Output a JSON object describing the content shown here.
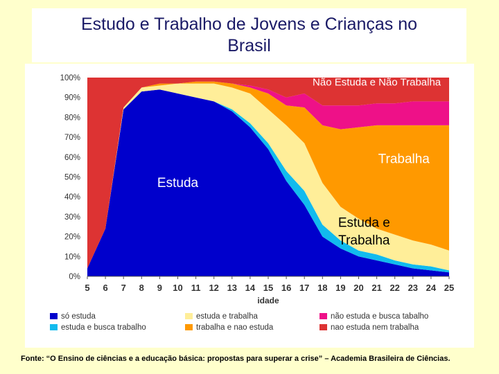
{
  "header": {
    "title_line1": "Estudo e Trabalho de Jovens e Crianças no",
    "title_line2": "Brasil"
  },
  "footer": {
    "source": "Fonte:  “O Ensino de ciências e a educação básica: propostas para superar a crise” – Academia Brasileira de Ciências."
  },
  "colors": {
    "so_estuda": "#0000cc",
    "estuda_busca_trabalho": "#11bbee",
    "estuda_trabalha": "#ffee99",
    "trabalha_nao_estuda": "#ff9900",
    "nao_estuda_busca_trabalho": "#ee1188",
    "nao_estuda_nem_trabalha": "#dd3333"
  },
  "chart_data": {
    "type": "area",
    "stacked": true,
    "xlabel": "idade",
    "ylabel": "",
    "x": [
      5,
      6,
      7,
      8,
      9,
      10,
      11,
      12,
      13,
      14,
      15,
      16,
      17,
      18,
      19,
      20,
      21,
      22,
      23,
      24,
      25
    ],
    "ylim": [
      0,
      100
    ],
    "yticks": [
      "0%",
      "10%",
      "20%",
      "30%",
      "40%",
      "50%",
      "60%",
      "70%",
      "80%",
      "90%",
      "100%"
    ],
    "series": [
      {
        "name": "só estuda",
        "color_key": "so_estuda",
        "values": [
          4,
          24,
          84,
          93,
          94,
          92,
          90,
          88,
          83,
          75,
          64,
          48,
          36,
          20,
          14,
          10,
          8,
          6,
          4,
          3,
          2
        ]
      },
      {
        "name": "estuda e busca trabalho",
        "color_key": "estuda_busca_trabalho",
        "values": [
          0,
          0,
          0,
          0,
          0,
          0,
          0,
          0,
          1,
          2,
          3,
          5,
          7,
          6,
          4,
          3,
          3,
          2,
          2,
          2,
          1
        ]
      },
      {
        "name": "estuda e trabalha",
        "color_key": "estuda_trabalha",
        "values": [
          0,
          0,
          1,
          2,
          2,
          5,
          7,
          9,
          11,
          15,
          17,
          23,
          24,
          21,
          17,
          16,
          13,
          13,
          12,
          11,
          10
        ]
      },
      {
        "name": "trabalha e nao estuda",
        "color_key": "trabalha_nao_estuda",
        "values": [
          0,
          0,
          0,
          0,
          1,
          0,
          1,
          1,
          2,
          3,
          8,
          10,
          18,
          29,
          39,
          46,
          52,
          55,
          58,
          60,
          63
        ]
      },
      {
        "name": "não estuda e busca tabalho",
        "color_key": "nao_estuda_busca_trabalho",
        "values": [
          0,
          0,
          0,
          0,
          0,
          0,
          0,
          0,
          0,
          1,
          2,
          4,
          7,
          10,
          12,
          11,
          11,
          11,
          12,
          12,
          12
        ]
      },
      {
        "name": "nao estuda nem trabalha",
        "color_key": "nao_estuda_nem_trabalha",
        "values": [
          96,
          76,
          15,
          5,
          3,
          3,
          2,
          2,
          3,
          4,
          6,
          10,
          8,
          14,
          14,
          14,
          13,
          13,
          12,
          12,
          12
        ]
      }
    ],
    "annotations": [
      {
        "text": "Não Estuda e Não Trabalha",
        "x": 21,
        "y": 96,
        "color": "#ffffff"
      },
      {
        "text": "Trabalha",
        "x": 22.5,
        "y": 57,
        "color": "#ffffff"
      },
      {
        "text": "Estuda",
        "x": 10,
        "y": 45,
        "color": "#ffffff"
      },
      {
        "text": "Estuda e",
        "x": 20.3,
        "y": 25,
        "color": "#000000"
      },
      {
        "text": "Trabalha",
        "x": 20.3,
        "y": 16,
        "color": "#000000"
      }
    ],
    "legend_position": "bottom",
    "grid": false
  }
}
